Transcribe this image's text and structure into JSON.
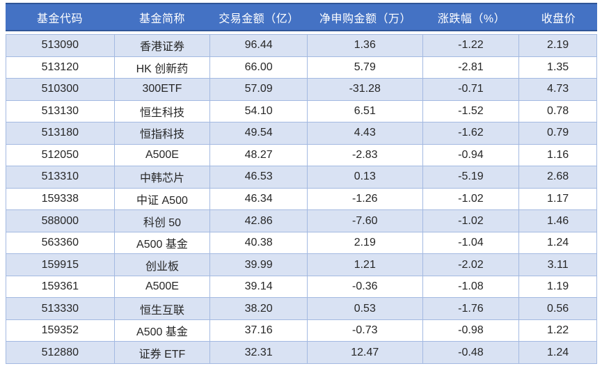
{
  "table": {
    "columns": [
      {
        "key": "fund-code",
        "label": "基金代码"
      },
      {
        "key": "fund-name",
        "label": "基金简称"
      },
      {
        "key": "trade-amount",
        "label": "交易金额（亿）"
      },
      {
        "key": "net-subscription",
        "label": "净申购金额（万）"
      },
      {
        "key": "change-pct",
        "label": "涨跌幅（%）"
      },
      {
        "key": "close-price",
        "label": "收盘价"
      }
    ],
    "rows": [
      [
        "513090",
        "香港证券",
        "96.44",
        "1.36",
        "-1.22",
        "2.19"
      ],
      [
        "513120",
        "HK 创新药",
        "66.00",
        "5.79",
        "-2.81",
        "1.35"
      ],
      [
        "510300",
        "300ETF",
        "57.09",
        "-31.28",
        "-0.71",
        "4.73"
      ],
      [
        "513130",
        "恒生科技",
        "54.10",
        "6.51",
        "-1.52",
        "0.78"
      ],
      [
        "513180",
        "恒指科技",
        "49.54",
        "4.43",
        "-1.62",
        "0.79"
      ],
      [
        "512050",
        "A500E",
        "48.27",
        "-2.83",
        "-0.94",
        "1.16"
      ],
      [
        "513310",
        "中韩芯片",
        "46.53",
        "0.13",
        "-5.19",
        "2.68"
      ],
      [
        "159338",
        "中证 A500",
        "46.34",
        "-1.26",
        "-1.02",
        "1.17"
      ],
      [
        "588000",
        "科创 50",
        "42.86",
        "-7.60",
        "-1.02",
        "1.46"
      ],
      [
        "563360",
        "A500 基金",
        "40.38",
        "2.19",
        "-1.04",
        "1.24"
      ],
      [
        "159915",
        "创业板",
        "39.99",
        "1.21",
        "-2.02",
        "3.11"
      ],
      [
        "159361",
        "A500E",
        "39.14",
        "-0.36",
        "-1.08",
        "1.19"
      ],
      [
        "513330",
        "恒生互联",
        "38.20",
        "0.53",
        "-1.76",
        "0.56"
      ],
      [
        "159352",
        "A500 基金",
        "37.16",
        "-0.73",
        "-0.98",
        "1.22"
      ],
      [
        "512880",
        "证券 ETF",
        "32.31",
        "12.47",
        "-0.48",
        "1.24"
      ]
    ]
  },
  "colors": {
    "header_bg": "#4472C4",
    "header_text": "#FFFFFF",
    "header_border": "#2F5597",
    "row_bg": "#FFFFFF",
    "row_alt_bg": "#D9E2F3",
    "grid_border": "#A3B9E1",
    "body_text": "#262626"
  }
}
